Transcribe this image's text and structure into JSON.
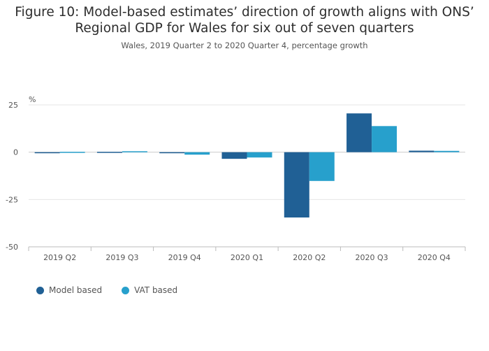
{
  "chart_data": {
    "type": "bar",
    "title": "Figure 10: Model-based estimates’ direction of growth aligns with ONS’ Regional GDP for Wales for six out of seven quarters",
    "subtitle": "Wales, 2019 Quarter 2 to 2020 Quarter 4, percentage growth",
    "ylabel": "%",
    "xlabel": "",
    "ylim": [
      -50,
      25
    ],
    "yticks": [
      25,
      0,
      -25,
      -50
    ],
    "grid": true,
    "legend_position": "bottom-left",
    "categories": [
      "2019 Q2",
      "2019 Q3",
      "2019 Q4",
      "2020 Q1",
      "2020 Q2",
      "2020 Q3",
      "2020 Q4"
    ],
    "series": [
      {
        "name": "Model based",
        "color": "#206095",
        "values": [
          -0.3,
          0.2,
          -0.3,
          -3.5,
          -34.5,
          20.5,
          0.8
        ]
      },
      {
        "name": "VAT based",
        "color": "#27a0cc",
        "values": [
          0.2,
          0.5,
          -1.3,
          -2.8,
          -15.2,
          13.8,
          0.7
        ]
      }
    ]
  }
}
